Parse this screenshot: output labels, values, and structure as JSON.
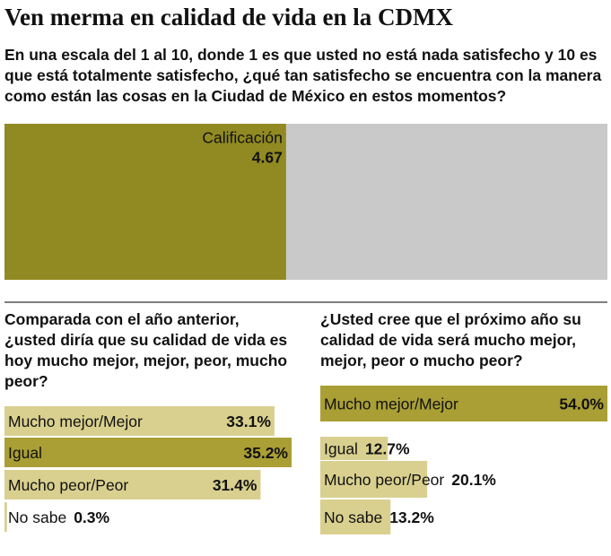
{
  "title": "Ven merma en calidad de vida en la CDMX",
  "chart_data": [
    {
      "type": "gauge",
      "title": "En una escala del 1 al 10, donde 1 es que usted no está nada satisfecho y 10 es que está totalmente satisfecho, ¿qué tan satisfecho se encuentra con la manera como están las cosas en la Ciudad de México en estos momentos?",
      "label": "Calificación",
      "value": 4.67,
      "xlim": [
        0,
        10
      ],
      "color": "#918a22",
      "track_color": "#c9c9c9"
    },
    {
      "type": "hbar",
      "title": "Comparada con el año anterior, ¿usted diría que su calidad de vida es hoy mucho mejor, mejor, peor, mucho peor?",
      "categories": [
        "Mucho mejor/Mejor",
        "Igual",
        "Mucho peor/Peor",
        "No sabe"
      ],
      "values": [
        33.1,
        35.2,
        31.4,
        0.3
      ],
      "value_labels": [
        "33.1%",
        "35.2%",
        "31.4%",
        "0.3%"
      ],
      "colors": [
        "#d9d08f",
        "#aa9f35",
        "#d9d08f",
        "#d9d08f"
      ]
    },
    {
      "type": "hbar",
      "title": "¿Usted cree que el próximo año su calidad de vida será mucho mejor, mejor, peor o mucho peor?",
      "categories": [
        "Mucho mejor/Mejor",
        "Igual",
        "Mucho peor/Peor",
        "No sabe"
      ],
      "values": [
        54.0,
        12.7,
        20.1,
        13.2
      ],
      "value_labels": [
        "54.0%",
        "12.7%",
        "20.1%",
        "13.2%"
      ],
      "colors": [
        "#aa9f35",
        "#d9d08f",
        "#d9d08f",
        "#d9d08f"
      ]
    }
  ]
}
